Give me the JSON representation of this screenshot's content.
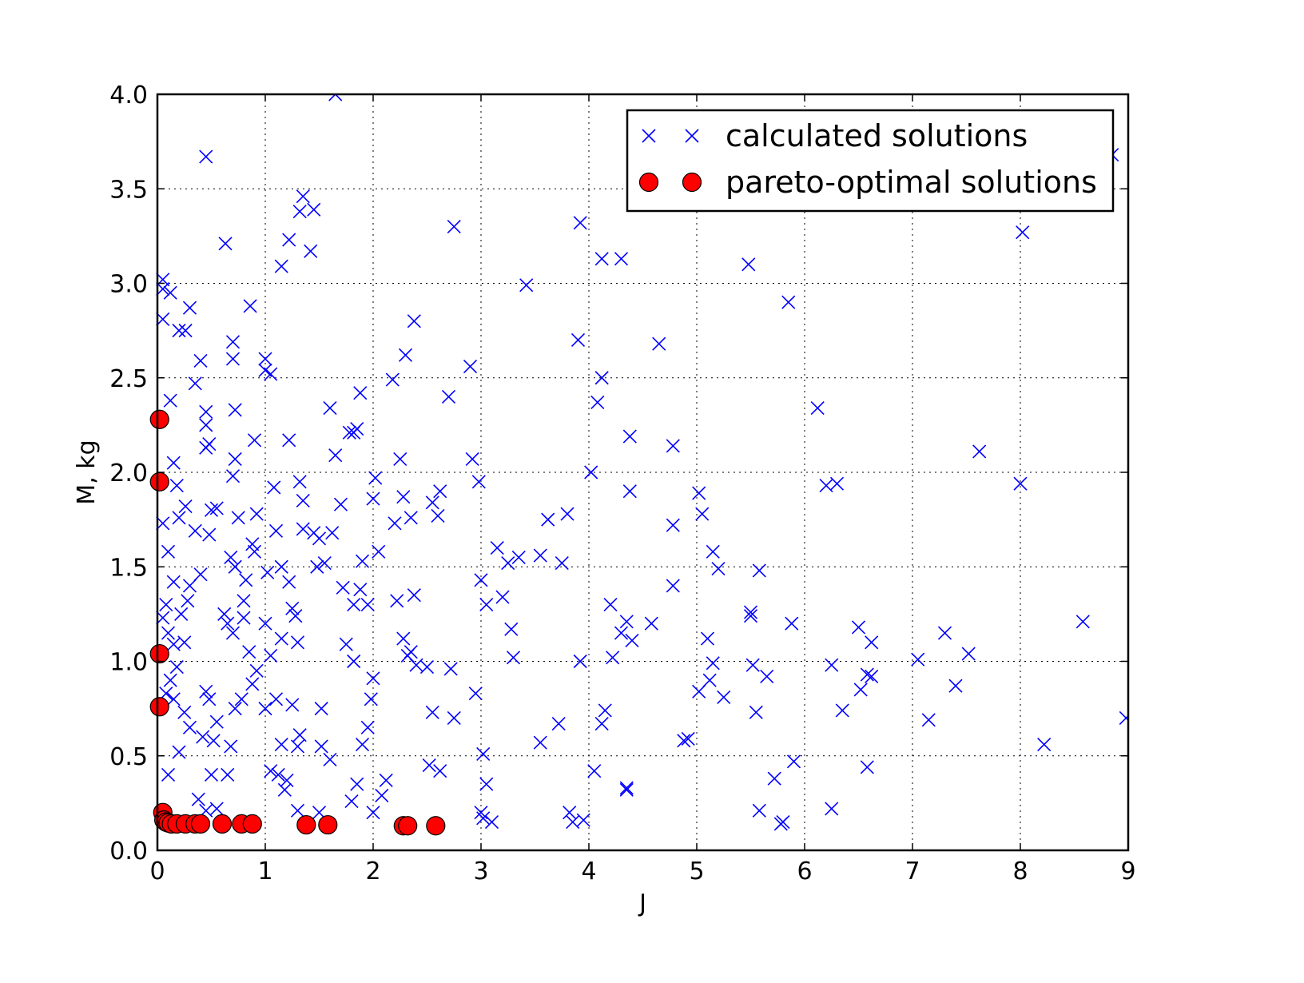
{
  "chart_data": {
    "type": "scatter",
    "xlabel": "J",
    "ylabel": "M, kg",
    "xlim": [
      0,
      9
    ],
    "ylim": [
      0,
      4.0
    ],
    "xticks": [
      "0",
      "1",
      "2",
      "3",
      "4",
      "5",
      "6",
      "7",
      "8",
      "9"
    ],
    "yticks": [
      "0.0",
      "0.5",
      "1.0",
      "1.5",
      "2.0",
      "2.5",
      "3.0",
      "3.5",
      "4.0"
    ],
    "grid": true,
    "legend_position": "top-right",
    "colors": {
      "calculated": "#0000ff",
      "pareto": "#ff0000"
    },
    "series": [
      {
        "name": "calculated solutions",
        "marker": "x",
        "points": [
          [
            0.05,
            3.02
          ],
          [
            0.05,
            2.97
          ],
          [
            0.12,
            2.95
          ],
          [
            0.05,
            2.81
          ],
          [
            0.2,
            2.75
          ],
          [
            0.26,
            2.75
          ],
          [
            0.3,
            2.87
          ],
          [
            0.35,
            2.47
          ],
          [
            0.4,
            2.59
          ],
          [
            0.45,
            2.32
          ],
          [
            0.45,
            2.25
          ],
          [
            0.48,
            2.15
          ],
          [
            0.45,
            2.13
          ],
          [
            0.5,
            1.8
          ],
          [
            0.55,
            1.81
          ],
          [
            0.48,
            1.67
          ],
          [
            0.35,
            1.69
          ],
          [
            0.4,
            1.46
          ],
          [
            0.3,
            1.4
          ],
          [
            0.28,
            1.32
          ],
          [
            0.22,
            1.25
          ],
          [
            0.08,
            1.3
          ],
          [
            0.05,
            1.23
          ],
          [
            0.1,
            1.15
          ],
          [
            0.15,
            1.09
          ],
          [
            0.25,
            1.1
          ],
          [
            0.18,
            0.97
          ],
          [
            0.12,
            0.9
          ],
          [
            0.08,
            0.83
          ],
          [
            0.15,
            0.8
          ],
          [
            0.25,
            0.73
          ],
          [
            0.3,
            0.65
          ],
          [
            0.2,
            0.52
          ],
          [
            0.1,
            0.4
          ],
          [
            0.05,
            1.73
          ],
          [
            0.1,
            1.58
          ],
          [
            0.15,
            1.42
          ],
          [
            0.15,
            2.05
          ],
          [
            0.12,
            2.38
          ],
          [
            0.18,
            1.93
          ],
          [
            0.2,
            1.76
          ],
          [
            0.26,
            1.82
          ],
          [
            0.45,
            3.67
          ],
          [
            0.63,
            3.21
          ],
          [
            0.7,
            2.69
          ],
          [
            0.7,
            2.6
          ],
          [
            0.72,
            2.33
          ],
          [
            0.72,
            2.07
          ],
          [
            0.7,
            1.98
          ],
          [
            0.75,
            1.76
          ],
          [
            0.68,
            1.55
          ],
          [
            0.72,
            1.5
          ],
          [
            0.62,
            1.25
          ],
          [
            0.65,
            1.2
          ],
          [
            0.7,
            1.15
          ],
          [
            0.8,
            1.32
          ],
          [
            0.82,
            1.43
          ],
          [
            0.88,
            1.62
          ],
          [
            0.86,
            2.88
          ],
          [
            0.9,
            2.17
          ],
          [
            0.92,
            1.78
          ],
          [
            0.9,
            1.58
          ],
          [
            0.8,
            1.23
          ],
          [
            0.85,
            1.05
          ],
          [
            0.92,
            0.95
          ],
          [
            0.88,
            0.88
          ],
          [
            0.78,
            0.8
          ],
          [
            0.72,
            0.75
          ],
          [
            0.68,
            0.55
          ],
          [
            0.65,
            0.4
          ],
          [
            0.55,
            0.68
          ],
          [
            0.52,
            0.58
          ],
          [
            0.45,
            0.84
          ],
          [
            0.48,
            0.8
          ],
          [
            0.42,
            0.6
          ],
          [
            0.5,
            0.4
          ],
          [
            0.38,
            0.27
          ],
          [
            0.45,
            0.21
          ],
          [
            0.55,
            0.22
          ],
          [
            1.0,
            2.6
          ],
          [
            1.0,
            2.54
          ],
          [
            1.05,
            2.52
          ],
          [
            1.15,
            3.09
          ],
          [
            1.22,
            3.23
          ],
          [
            1.32,
            3.38
          ],
          [
            1.35,
            3.46
          ],
          [
            1.45,
            3.39
          ],
          [
            1.42,
            3.17
          ],
          [
            1.22,
            2.17
          ],
          [
            1.08,
            1.92
          ],
          [
            1.1,
            1.69
          ],
          [
            1.02,
            1.47
          ],
          [
            1.15,
            1.5
          ],
          [
            1.22,
            1.42
          ],
          [
            1.25,
            1.28
          ],
          [
            1.28,
            1.24
          ],
          [
            1.0,
            1.2
          ],
          [
            1.05,
            1.03
          ],
          [
            1.15,
            1.12
          ],
          [
            1.3,
            1.1
          ],
          [
            1.1,
            0.8
          ],
          [
            1.0,
            0.75
          ],
          [
            1.25,
            0.77
          ],
          [
            1.32,
            0.61
          ],
          [
            1.15,
            0.56
          ],
          [
            1.3,
            0.55
          ],
          [
            1.05,
            0.42
          ],
          [
            1.12,
            0.4
          ],
          [
            1.2,
            0.37
          ],
          [
            1.18,
            0.32
          ],
          [
            1.3,
            0.21
          ],
          [
            1.32,
            1.95
          ],
          [
            1.35,
            1.85
          ],
          [
            1.35,
            1.7
          ],
          [
            1.45,
            1.68
          ],
          [
            1.5,
            1.65
          ],
          [
            1.48,
            1.5
          ],
          [
            1.55,
            1.52
          ],
          [
            1.62,
            1.68
          ],
          [
            1.6,
            2.34
          ],
          [
            1.65,
            2.09
          ],
          [
            1.7,
            1.83
          ],
          [
            1.72,
            1.39
          ],
          [
            1.75,
            1.09
          ],
          [
            1.82,
            1.0
          ],
          [
            1.52,
            0.75
          ],
          [
            1.52,
            0.55
          ],
          [
            1.6,
            0.48
          ],
          [
            1.5,
            0.2
          ],
          [
            1.65,
            4.0
          ],
          [
            1.78,
            2.21
          ],
          [
            1.82,
            2.21
          ],
          [
            1.85,
            2.23
          ],
          [
            1.88,
            2.42
          ],
          [
            1.9,
            1.53
          ],
          [
            1.95,
            1.3
          ],
          [
            1.82,
            1.3
          ],
          [
            1.88,
            1.38
          ],
          [
            2.0,
            1.86
          ],
          [
            2.02,
            1.97
          ],
          [
            2.05,
            1.58
          ],
          [
            2.18,
            2.49
          ],
          [
            2.25,
            2.07
          ],
          [
            2.2,
            1.73
          ],
          [
            2.28,
            1.87
          ],
          [
            2.35,
            1.76
          ],
          [
            2.38,
            1.35
          ],
          [
            2.22,
            1.32
          ],
          [
            2.28,
            1.12
          ],
          [
            2.35,
            1.05
          ],
          [
            2.4,
            0.98
          ],
          [
            2.5,
            0.97
          ],
          [
            2.32,
            1.03
          ],
          [
            2.3,
            2.62
          ],
          [
            2.38,
            2.8
          ],
          [
            2.55,
            1.84
          ],
          [
            2.6,
            1.77
          ],
          [
            2.62,
            1.9
          ],
          [
            2.7,
            2.4
          ],
          [
            2.75,
            3.3
          ],
          [
            2.9,
            2.56
          ],
          [
            2.92,
            2.07
          ],
          [
            2.98,
            1.95
          ],
          [
            3.0,
            1.43
          ],
          [
            3.05,
            1.3
          ],
          [
            3.15,
            1.6
          ],
          [
            3.2,
            1.34
          ],
          [
            3.25,
            1.52
          ],
          [
            3.28,
            1.17
          ],
          [
            3.3,
            1.02
          ],
          [
            3.35,
            1.55
          ],
          [
            3.42,
            2.99
          ],
          [
            3.55,
            1.56
          ],
          [
            3.62,
            1.75
          ],
          [
            3.75,
            1.52
          ],
          [
            3.8,
            1.78
          ],
          [
            3.92,
            3.32
          ],
          [
            3.9,
            2.7
          ],
          [
            3.92,
            1.0
          ],
          [
            4.02,
            2.0
          ],
          [
            4.08,
            2.37
          ],
          [
            4.12,
            2.5
          ],
          [
            4.12,
            3.13
          ],
          [
            4.3,
            3.13
          ],
          [
            4.38,
            2.19
          ],
          [
            4.38,
            1.9
          ],
          [
            4.2,
            1.3
          ],
          [
            4.3,
            1.15
          ],
          [
            4.22,
            1.02
          ],
          [
            4.35,
            1.21
          ],
          [
            4.4,
            1.11
          ],
          [
            4.58,
            1.2
          ],
          [
            4.65,
            2.68
          ],
          [
            4.78,
            2.14
          ],
          [
            4.78,
            1.72
          ],
          [
            4.78,
            1.4
          ],
          [
            5.02,
            1.89
          ],
          [
            5.05,
            1.78
          ],
          [
            5.15,
            1.58
          ],
          [
            5.2,
            1.49
          ],
          [
            5.48,
            3.1
          ],
          [
            5.5,
            1.24
          ],
          [
            5.5,
            1.26
          ],
          [
            5.52,
            0.98
          ],
          [
            5.58,
            1.48
          ],
          [
            5.65,
            0.92
          ],
          [
            5.85,
            2.9
          ],
          [
            5.88,
            1.2
          ],
          [
            6.12,
            2.34
          ],
          [
            6.2,
            1.93
          ],
          [
            6.3,
            1.94
          ],
          [
            6.25,
            0.98
          ],
          [
            6.35,
            0.74
          ],
          [
            6.5,
            1.18
          ],
          [
            6.62,
            1.1
          ],
          [
            6.62,
            0.92
          ],
          [
            6.58,
            0.93
          ],
          [
            6.52,
            0.85
          ],
          [
            6.58,
            0.44
          ],
          [
            6.25,
            0.22
          ],
          [
            5.9,
            0.47
          ],
          [
            5.72,
            0.38
          ],
          [
            5.58,
            0.21
          ],
          [
            5.55,
            0.73
          ],
          [
            5.02,
            0.84
          ],
          [
            5.12,
            0.9
          ],
          [
            5.15,
            0.99
          ],
          [
            5.1,
            1.12
          ],
          [
            5.25,
            0.81
          ],
          [
            4.88,
            0.58
          ],
          [
            4.92,
            0.59
          ],
          [
            4.12,
            0.67
          ],
          [
            4.15,
            0.74
          ],
          [
            4.05,
            0.42
          ],
          [
            4.35,
            0.33
          ],
          [
            4.35,
            0.32
          ],
          [
            3.82,
            0.2
          ],
          [
            3.85,
            0.15
          ],
          [
            3.95,
            0.16
          ],
          [
            3.55,
            0.57
          ],
          [
            3.72,
            0.67
          ],
          [
            3.02,
            0.51
          ],
          [
            3.05,
            0.35
          ],
          [
            3.0,
            0.2
          ],
          [
            3.02,
            0.17
          ],
          [
            3.1,
            0.15
          ],
          [
            2.55,
            0.73
          ],
          [
            2.52,
            0.45
          ],
          [
            2.62,
            0.42
          ],
          [
            2.75,
            0.7
          ],
          [
            2.95,
            0.83
          ],
          [
            2.72,
            0.96
          ],
          [
            2.12,
            0.37
          ],
          [
            2.08,
            0.29
          ],
          [
            2.0,
            0.2
          ],
          [
            1.95,
            0.65
          ],
          [
            1.9,
            0.56
          ],
          [
            1.98,
            0.8
          ],
          [
            2.0,
            0.91
          ],
          [
            1.85,
            0.35
          ],
          [
            1.8,
            0.26
          ],
          [
            7.05,
            1.01
          ],
          [
            7.15,
            0.69
          ],
          [
            7.3,
            1.15
          ],
          [
            7.4,
            0.87
          ],
          [
            7.52,
            1.04
          ],
          [
            7.62,
            2.11
          ],
          [
            8.0,
            1.94
          ],
          [
            8.02,
            3.27
          ],
          [
            8.22,
            0.56
          ],
          [
            8.58,
            1.21
          ],
          [
            8.98,
            0.7
          ],
          [
            8.85,
            3.68
          ],
          [
            5.8,
            0.15
          ],
          [
            5.78,
            0.14
          ]
        ]
      },
      {
        "name": "pareto-optimal solutions",
        "marker": "o",
        "points": [
          [
            0.02,
            2.28
          ],
          [
            0.02,
            1.95
          ],
          [
            0.02,
            1.04
          ],
          [
            0.02,
            0.76
          ],
          [
            0.05,
            0.2
          ],
          [
            0.06,
            0.16
          ],
          [
            0.08,
            0.15
          ],
          [
            0.1,
            0.145
          ],
          [
            0.13,
            0.14
          ],
          [
            0.18,
            0.14
          ],
          [
            0.26,
            0.14
          ],
          [
            0.35,
            0.14
          ],
          [
            0.4,
            0.14
          ],
          [
            0.6,
            0.14
          ],
          [
            0.78,
            0.14
          ],
          [
            0.88,
            0.14
          ],
          [
            1.38,
            0.135
          ],
          [
            1.58,
            0.135
          ],
          [
            2.28,
            0.13
          ],
          [
            2.32,
            0.13
          ],
          [
            2.58,
            0.13
          ]
        ]
      }
    ]
  }
}
